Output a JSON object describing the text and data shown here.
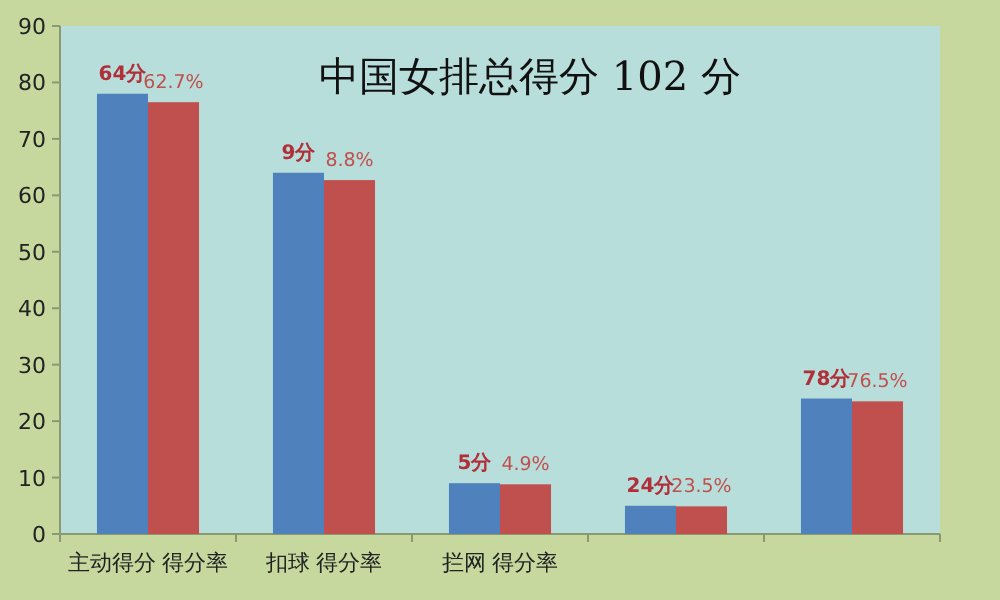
{
  "chart_data": {
    "type": "bar",
    "title": "中国女排总得分 102 分",
    "categories": [
      "主动得分  得分率",
      "扣球  得分率",
      "拦网  得分率",
      null,
      null
    ],
    "series": [
      {
        "color": "#4f81bd",
        "values": [
          78,
          64,
          9,
          5,
          24
        ]
      },
      {
        "color": "#c0504d",
        "values": [
          76.5,
          62.7,
          8.8,
          4.9,
          23.5
        ]
      }
    ],
    "annotations": [
      "64分",
      "62.7%",
      "9分",
      "8.8%",
      "5分",
      "4.9%",
      "24分",
      "23.5%",
      "78分",
      "76.5%"
    ],
    "ylim": [
      0,
      90
    ],
    "yticks": [
      0,
      10,
      20,
      30,
      40,
      50,
      60,
      70,
      80,
      90
    ],
    "grid": false
  }
}
